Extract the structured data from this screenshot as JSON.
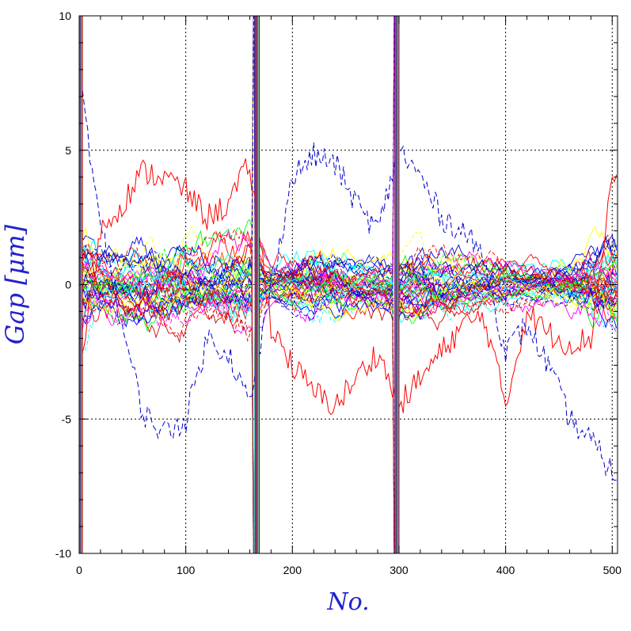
{
  "chart_data": {
    "type": "line",
    "title": "",
    "xlabel": "No.",
    "ylabel": "Gap [μm]",
    "xlim": [
      0,
      505
    ],
    "ylim": [
      -10,
      10
    ],
    "xticks": [
      0,
      100,
      200,
      300,
      400,
      500
    ],
    "yticks": [
      -10,
      -5,
      0,
      5,
      10
    ],
    "xtick_labels": [
      "0",
      "100",
      "200",
      "300",
      "400",
      "500"
    ],
    "ytick_labels": [
      "-10",
      "-5",
      "0",
      "5",
      "10"
    ],
    "grid": true,
    "legend": "none",
    "series_colors": [
      "#ff0000",
      "#0000ff",
      "#00ff00",
      "#ff00ff",
      "#00ffff",
      "#ffff00",
      "#0000cc",
      "#cc0000"
    ],
    "num_series": 48,
    "spike_positions": [
      0,
      1,
      165,
      166,
      167,
      296,
      297,
      298
    ],
    "envelope": {
      "x": [
        0,
        10,
        20,
        40,
        60,
        80,
        100,
        120,
        140,
        160,
        180,
        200,
        220,
        240,
        260,
        280,
        300,
        320,
        340,
        360,
        380,
        400,
        420,
        440,
        460,
        480,
        500,
        505
      ],
      "amplitude": [
        4.0,
        3.0,
        2.2,
        2.2,
        2.6,
        2.8,
        2.6,
        2.2,
        2.4,
        2.8,
        1.0,
        1.8,
        2.4,
        2.2,
        1.6,
        1.8,
        2.2,
        2.4,
        2.2,
        1.8,
        1.4,
        1.6,
        1.2,
        1.4,
        1.8,
        2.4,
        2.8,
        2.8
      ]
    },
    "outlier_traces": [
      {
        "color": "#0000cc",
        "dash": "dashed",
        "x": [
          0,
          10,
          20,
          40,
          60,
          80,
          100,
          120,
          140,
          160,
          180,
          200,
          220,
          240,
          260,
          280,
          300,
          320,
          340,
          360,
          380,
          400,
          420,
          440,
          460,
          480,
          500
        ],
        "y": [
          8.5,
          4.5,
          2.5,
          -1.5,
          -4.8,
          -5.5,
          -5.0,
          -2.0,
          -2.5,
          -4.5,
          0.0,
          4.0,
          4.8,
          4.5,
          3.0,
          2.0,
          5.0,
          4.0,
          2.5,
          2.0,
          1.0,
          -2.5,
          -1.5,
          -3.0,
          -5.0,
          -5.8,
          -7.0
        ]
      },
      {
        "color": "#ff0000",
        "dash": "solid",
        "x": [
          0,
          20,
          40,
          60,
          80,
          100,
          120,
          140,
          160,
          180,
          200,
          220,
          240,
          260,
          280,
          300,
          320,
          340,
          360,
          380,
          400,
          420,
          440,
          460,
          480,
          500
        ],
        "y": [
          -3.5,
          2.0,
          3.0,
          4.2,
          4.0,
          3.5,
          2.5,
          3.0,
          4.5,
          -1.5,
          -3.0,
          -4.0,
          -4.5,
          -3.5,
          -2.5,
          -4.5,
          -3.5,
          -2.5,
          -1.5,
          -1.2,
          -4.5,
          -1.0,
          -1.8,
          -2.2,
          -2.0,
          4.0
        ]
      }
    ]
  }
}
